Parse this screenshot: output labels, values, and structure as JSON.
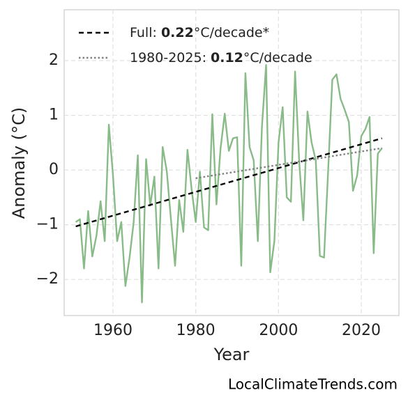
{
  "chart_data": {
    "type": "line",
    "x_label": "Year",
    "y_label": "Anomaly (°C)",
    "footer": "LocalClimateTrends.com",
    "x": [
      1951,
      1952,
      1953,
      1954,
      1955,
      1956,
      1957,
      1958,
      1959,
      1960,
      1961,
      1962,
      1963,
      1964,
      1965,
      1966,
      1967,
      1968,
      1969,
      1970,
      1971,
      1972,
      1973,
      1974,
      1975,
      1976,
      1977,
      1978,
      1979,
      1980,
      1981,
      1982,
      1983,
      1984,
      1985,
      1986,
      1987,
      1988,
      1989,
      1990,
      1991,
      1992,
      1993,
      1994,
      1995,
      1996,
      1997,
      1998,
      1999,
      2000,
      2001,
      2002,
      2003,
      2004,
      2005,
      2006,
      2007,
      2008,
      2009,
      2010,
      2011,
      2012,
      2013,
      2014,
      2015,
      2016,
      2017,
      2018,
      2019,
      2020,
      2021,
      2022,
      2023,
      2024,
      2025
    ],
    "values": [
      -0.95,
      -0.9,
      -1.8,
      -0.75,
      -1.58,
      -1.2,
      -0.57,
      -1.3,
      0.83,
      -0.1,
      -1.3,
      -0.95,
      -2.12,
      -1.6,
      -0.95,
      0.27,
      -2.42,
      0.2,
      -0.65,
      -0.12,
      -1.8,
      0.42,
      -0.02,
      -0.9,
      -1.75,
      -0.55,
      -1.13,
      0.37,
      -0.35,
      -0.95,
      -0.03,
      -1.05,
      -1.1,
      1.02,
      -0.63,
      0.4,
      1.03,
      0.35,
      0.58,
      0.6,
      -1.75,
      1.77,
      0.42,
      0.18,
      -1.3,
      0.8,
      1.92,
      -1.87,
      -1.3,
      0.5,
      1.15,
      -0.5,
      -0.58,
      1.8,
      0.15,
      -0.92,
      1.07,
      0.5,
      0.18,
      -1.57,
      -1.6,
      0.0,
      1.65,
      1.75,
      1.3,
      1.1,
      0.88,
      -0.38,
      -0.1,
      0.62,
      0.75,
      0.97,
      -1.52,
      0.3,
      0.4
    ],
    "color": "#88bb88",
    "trend_lines": [
      {
        "label": {
          "prefix": "Full: ",
          "value": "0.22",
          "suffix": "°C/decade*"
        },
        "x": [
          1951,
          2025
        ],
        "values": [
          -1.03,
          0.58
        ],
        "color": "#000000",
        "style": "dashed"
      },
      {
        "label": {
          "prefix": "1980-2025: ",
          "value": "0.12",
          "suffix": "°C/decade"
        },
        "x": [
          1980,
          2025
        ],
        "values": [
          -0.15,
          0.4
        ],
        "color": "#808080",
        "style": "dotted"
      }
    ],
    "xlim": [
      1948.2,
      2029.1
    ],
    "ylim": [
      -2.66,
      2.93
    ],
    "xticks": [
      1960,
      1980,
      2000,
      2020
    ],
    "yticks": [
      {
        "value": -2,
        "label": "−2"
      },
      {
        "value": -1,
        "label": "−1"
      },
      0,
      1,
      2
    ],
    "grid": true,
    "legend": "upper left"
  }
}
